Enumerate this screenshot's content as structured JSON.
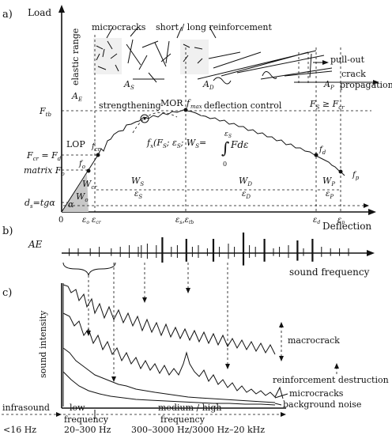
{
  "panels": {
    "a": "a)",
    "b": "b)",
    "c": "c)"
  },
  "panel_a": {
    "y_axis_label": "Load",
    "x_axis_label": "Deflection",
    "elastic_range": "elastic range",
    "microcracks": "microcracks",
    "reinforcement": "short / long  reinforcement",
    "pull_out": "pull-out",
    "crack": "crack",
    "propagation": "propagation",
    "A_E": "A",
    "A_E_sub": "E",
    "A_S": "A",
    "A_S_sub": "S",
    "A_D": "A",
    "A_D_sub": "D",
    "A_P": "A",
    "A_P_sub": "P",
    "strengthening": "strengthening",
    "MOR": "MOR",
    "fmax": "f",
    "fmax_sub": "max",
    "deflection_control": "deflection control",
    "Fs_cond": "F",
    "Fs_cond_sub": "S",
    "Fs_cond_rest": " ≥ F",
    "Fs_cond_sub2": "cr",
    "Ftb": "F",
    "Ftb_sub": "tb",
    "LOP": "LOP",
    "fcr": "f",
    "fcr_sub": "cr",
    "Fcr_Fd": "F",
    "Fcr_sub": "cr",
    "Fd_part": " = F",
    "Fd_sub": "d",
    "matrix_Fo": "matrix  F",
    "Fo_sub": "o",
    "fo": "f",
    "fo_sub": "o",
    "Wcr": "W",
    "Wcr_sub": "cr",
    "Wo": "W",
    "Wo_sub": "o",
    "alpha": "α",
    "ds_tga": "d",
    "ds_sub": "s",
    "tga": "=tgα",
    "formula_left": "f",
    "formula_sub": "x",
    "formula_mid": "(F",
    "formula_rest": "; ε",
    "formula_rest2": "; W",
    "formula_eq": "=",
    "formula_int_top": "ε",
    "formula_int_top_sub": "S",
    "formula_int_bot": "0",
    "formula_int_body": "Fdε",
    "WS": "W",
    "WS_sub": "S",
    "WD": "W",
    "WD_sub": "D",
    "WP": "W",
    "WP_sub": "P",
    "epsS": "ε",
    "epsS_sub": "S",
    "epsD": "ε",
    "epsD_sub": "D",
    "epsP": "ε",
    "epsP_sub": "P",
    "fd": "f",
    "fd_sub": "d",
    "fp": "f",
    "fp_sub": "p",
    "x_0": "0",
    "x_eo": "ε",
    "x_eo_sub": "o",
    "x_ecr": "ε",
    "x_ecr_sub": "cr",
    "x_es": "ε",
    "x_es_sub": "s",
    "x_etb": ",ε",
    "x_etb_sub": "tb",
    "x_ed": "ε",
    "x_ed_sub": "d",
    "x_ep": "ε",
    "x_ep_sub": "p"
  },
  "panel_b": {
    "AE": "AE",
    "sound_frequency": "sound frequency",
    "bars_rel": [
      0.02,
      0.05,
      0.09,
      0.12,
      0.16,
      0.19,
      0.22,
      0.25,
      0.26,
      0.28,
      0.31,
      0.33,
      0.36,
      0.38,
      0.41,
      0.43,
      0.45,
      0.48,
      0.5,
      0.52,
      0.55,
      0.57,
      0.6,
      0.62,
      0.64,
      0.67,
      0.7,
      0.72,
      0.75,
      0.78,
      0.8,
      0.83,
      0.86,
      0.89,
      0.92,
      0.95
    ],
    "bars_amp": [
      0.3,
      0.3,
      0.3,
      0.4,
      0.3,
      0.4,
      0.5,
      0.4,
      0.5,
      0.6,
      0.5,
      1.0,
      0.4,
      0.5,
      0.9,
      0.4,
      0.5,
      0.3,
      0.9,
      0.4,
      0.6,
      0.4,
      1.3,
      0.5,
      0.4,
      0.9,
      0.3,
      0.4,
      0.5,
      0.8,
      0.3,
      0.9,
      0.4,
      0.3,
      0.3,
      0.3
    ]
  },
  "panel_c": {
    "y_label": "sound intensity",
    "macrocrack": "macrocrack",
    "reinforcement_destruction": "reinforcement destruction",
    "microcracks": "microcracks",
    "background_noise": "background noise",
    "infrasound": "infrasound",
    "low": "low",
    "medium_high": "medium / high",
    "frequency_low": "frequency",
    "frequency_high": "frequency",
    "f_lt16": "<16 Hz",
    "f_20_300": "20–300 Hz",
    "f_300_3000": "300–3000 Hz/3000 Hz–20 kHz"
  }
}
